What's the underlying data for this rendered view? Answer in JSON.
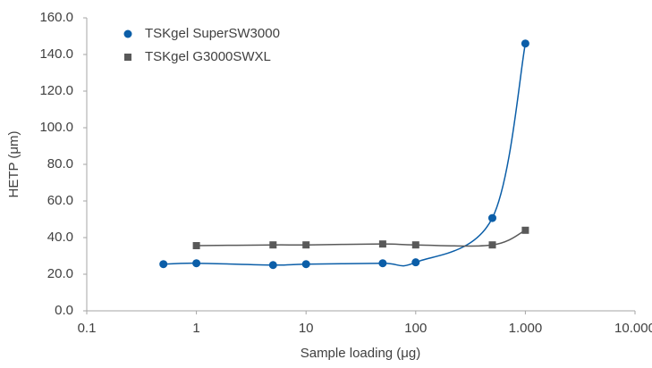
{
  "chart_data": {
    "type": "line",
    "x_label": "Sample loading (μg)",
    "y_label": "HETP (μm)",
    "xscale": "log",
    "grid": false,
    "legend": "top-left",
    "xlim": [
      0.1,
      10000
    ],
    "xticks": [
      0.1,
      1,
      10,
      100,
      {
        "value": 1000,
        "label": "1.000"
      },
      {
        "value": 10000,
        "label": "10.000"
      }
    ],
    "ylim": [
      0,
      160
    ],
    "yticks": [
      {
        "value": 0,
        "label": "0.0"
      },
      {
        "value": 20,
        "label": "20.0"
      },
      {
        "value": 40,
        "label": "40.0"
      },
      {
        "value": 60,
        "label": "60.0"
      },
      {
        "value": 80,
        "label": "80.0"
      },
      {
        "value": 100,
        "label": "100.0"
      },
      {
        "value": 120,
        "label": "120.0"
      },
      {
        "value": 140,
        "label": "140.0"
      },
      {
        "value": 160,
        "label": "160.0"
      }
    ],
    "series": [
      {
        "name": "TSKgel SuperSW3000",
        "color": "#0b5ea8",
        "marker": "circle",
        "x": [
          0.5,
          1,
          5,
          10,
          50,
          100,
          500,
          1000
        ],
        "values": [
          25.5,
          26,
          25,
          25.5,
          26,
          26.5,
          50.7,
          146
        ]
      },
      {
        "name": "TSKgel G3000SWXL",
        "color": "#595959",
        "marker": "square",
        "x": [
          1,
          5,
          10,
          50,
          100,
          500,
          1000
        ],
        "values": [
          35.6,
          36,
          36,
          36.5,
          36,
          36,
          44
        ]
      }
    ]
  }
}
